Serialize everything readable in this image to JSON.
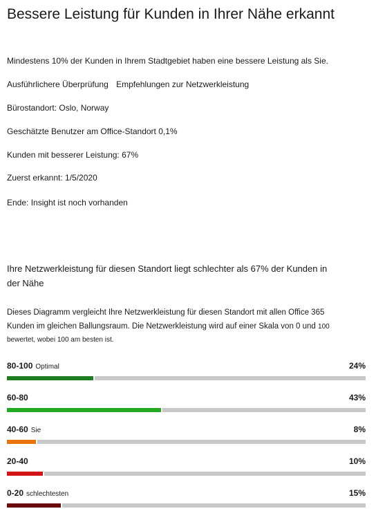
{
  "header": {
    "title": "Bessere Leistung für Kunden in Ihrer Nähe erkannt"
  },
  "summary": "Mindestens 10% der Kunden in Ihrem Stadtgebiet haben eine bessere Leistung als Sie.",
  "links": {
    "review": "Ausführlichere Überprüfung",
    "recommendations": "Empfehlungen zur Netzwerkleistung"
  },
  "details": {
    "office_location": "Bürostandort: Oslo, Norway",
    "estimated_users": "Geschätzte Benutzer am Office-Standort 0,1%",
    "better_customers": "Kunden mit besserer Leistung: 67%",
    "first_detected": "Zuerst erkannt: 1/5/2020",
    "end": "Ende: Insight ist noch vorhanden"
  },
  "comparison": {
    "heading": "Ihre Netzwerkleistung für diesen Standort liegt schlechter als 67% der Kunden in der Nähe",
    "description_main": "Dieses Diagramm vergleicht Ihre Netzwerkleistung für diesen Standort mit allen Office 365 Kunden im gleichen Ballungsraum. Die Netzwerkleistung wird auf einer Skala von 0 und",
    "description_tail": "100 bewertet, wobei 100 am besten ist."
  },
  "chart_data": {
    "type": "bar",
    "categories": [
      "80-100",
      "60-80",
      "40-60",
      "20-40",
      "0-20"
    ],
    "category_notes": [
      "Optimal",
      "",
      "Sie",
      "",
      "schlechtesten"
    ],
    "values": [
      24,
      43,
      8,
      10,
      15
    ],
    "value_labels": [
      "24%",
      "43%",
      "8%",
      "10%",
      "15%"
    ],
    "colors": [
      "#1e7d1e",
      "#22a822",
      "#e8740c",
      "#d41414",
      "#6b0c0c"
    ],
    "track_color": "#c8c8c8",
    "xlim": [
      0,
      100
    ]
  }
}
